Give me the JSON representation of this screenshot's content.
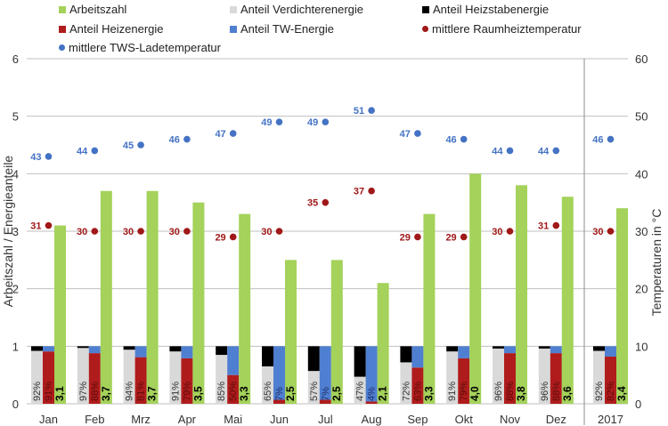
{
  "chart_data": {
    "type": "bar",
    "title": "",
    "ylabel": "Arbeitszahl / Energieanteile",
    "ylabel_right": "Temperaturen in °C",
    "ylim": [
      0,
      6
    ],
    "ylim_right": [
      0,
      60
    ],
    "yticks": [
      "0",
      "1",
      "2",
      "3",
      "4",
      "5",
      "6"
    ],
    "yticks_right": [
      "0",
      "10",
      "20",
      "30",
      "40",
      "50",
      "60"
    ],
    "grid": true,
    "legend_position": "top",
    "categories": [
      "Jan",
      "Feb",
      "Mrz",
      "Apr",
      "Mai",
      "Jun",
      "Jul",
      "Aug",
      "Sep",
      "Okt",
      "Nov",
      "Dez",
      "2017"
    ],
    "colors": {
      "arbeitszahl": "#a4d25a",
      "verdichter": "#d9d9d9",
      "heizstab": "#000000",
      "heiz": "#b01c1c",
      "tw": "#4f7fd0",
      "raum_dot": "#a01818",
      "tws_dot": "#4472c4",
      "grid": "#bfbfbf"
    },
    "legend": [
      {
        "key": "arbeitszahl",
        "label": "Arbeitszahl",
        "marker": "square"
      },
      {
        "key": "verdichter",
        "label": "Anteil Verdichterenergie",
        "marker": "square"
      },
      {
        "key": "heizstab",
        "label": "Anteil Heizstabenergie",
        "marker": "square"
      },
      {
        "key": "heiz",
        "label": "Anteil Heizenergie",
        "marker": "square"
      },
      {
        "key": "tw",
        "label": "Anteil TW-Energie",
        "marker": "square"
      },
      {
        "key": "raum_dot",
        "label": "mittlere Raumheiztemperatur",
        "marker": "dot"
      },
      {
        "key": "tws_dot",
        "label": "mittlere TWS-Ladetemperatur",
        "marker": "dot"
      }
    ],
    "series": [
      {
        "name": "Arbeitszahl",
        "values": [
          3.1,
          3.7,
          3.7,
          3.5,
          3.3,
          2.5,
          2.5,
          2.1,
          3.3,
          4.0,
          3.8,
          3.6,
          3.4
        ],
        "labels": [
          "3,1",
          "3,7",
          "3,7",
          "3,5",
          "3,3",
          "2,5",
          "2,5",
          "2,1",
          "3,3",
          "4,0",
          "3,8",
          "3,6",
          "3,4"
        ]
      },
      {
        "name": "Anteil Verdichterenergie",
        "values": [
          0.92,
          0.97,
          0.94,
          0.91,
          0.85,
          0.65,
          0.57,
          0.47,
          0.72,
          0.91,
          0.96,
          0.96,
          0.92
        ],
        "labels": [
          "92%",
          "97%",
          "94%",
          "91%",
          "85%",
          "65%",
          "57%",
          "47%",
          "72%",
          "91%",
          "96%",
          "96%",
          "92%"
        ]
      },
      {
        "name": "Anteil Heizstabenergie",
        "values": [
          0.08,
          0.03,
          0.06,
          0.09,
          0.15,
          0.35,
          0.43,
          0.53,
          0.28,
          0.09,
          0.04,
          0.04,
          0.08
        ]
      },
      {
        "name": "Anteil Heizenergie",
        "values": [
          0.91,
          0.88,
          0.81,
          0.79,
          0.5,
          0.07,
          0.07,
          0.04,
          0.63,
          0.79,
          0.88,
          0.88,
          0.82
        ],
        "labels": [
          "91%",
          "88%",
          "81%",
          "79%",
          "50%",
          "7%",
          "7%",
          "4%",
          "63%",
          "79%",
          "88%",
          "88%",
          "82%"
        ]
      },
      {
        "name": "Anteil TW-Energie",
        "values": [
          0.09,
          0.12,
          0.19,
          0.21,
          0.5,
          0.93,
          0.93,
          0.96,
          0.37,
          0.21,
          0.12,
          0.12,
          0.18
        ]
      },
      {
        "name": "mittlere Raumheiztemperatur",
        "axis": "right",
        "values": [
          31,
          30,
          30,
          30,
          29,
          30,
          35,
          37,
          29,
          29,
          30,
          31,
          30
        ]
      },
      {
        "name": "mittlere TWS-Ladetemperatur",
        "axis": "right",
        "values": [
          43,
          44,
          45,
          46,
          47,
          49,
          49,
          51,
          47,
          46,
          44,
          44,
          46
        ]
      }
    ]
  }
}
